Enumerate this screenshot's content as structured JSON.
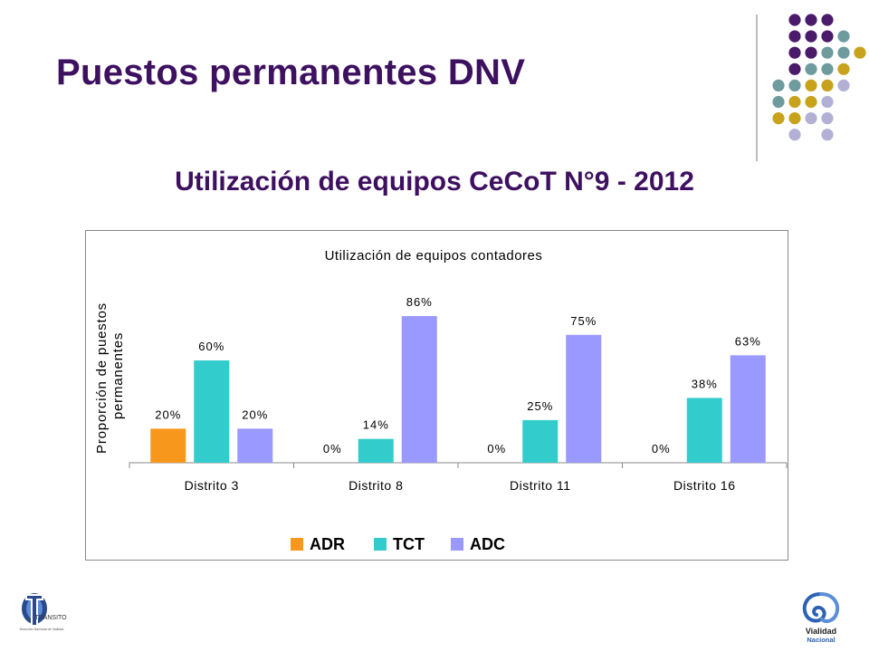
{
  "slide": {
    "title": "Puestos permanentes DNV",
    "subtitle": "Utilización de equipos CeCoT N°9 - 2012"
  },
  "logos": {
    "left_text": "TRÁNSITO",
    "left_caption": "Dirección Nacional de Vialidad",
    "right_text_1": "Vialidad",
    "right_text_2": "Nacional"
  },
  "decoration": {
    "dot_colors": [
      "#4b1a6b",
      "#6d9b9e",
      "#c9a21c",
      "#b3b0d6"
    ]
  },
  "chart_data": {
    "type": "bar",
    "title": "Utilización de equipos contadores",
    "ylabel": "Proporción de puestos permanentes",
    "xlabel": "",
    "categories": [
      "Distrito 3",
      "Distrito 8",
      "Distrito 11",
      "Distrito 16"
    ],
    "series": [
      {
        "name": "ADR",
        "color": "#f7981d",
        "values": [
          20,
          0,
          0,
          0
        ],
        "labels": [
          "20%",
          "0%",
          "0%",
          "0%"
        ]
      },
      {
        "name": "TCT",
        "color": "#33cccc",
        "values": [
          60,
          14,
          25,
          38
        ],
        "labels": [
          "60%",
          "14%",
          "25%",
          "38%"
        ]
      },
      {
        "name": "ADC",
        "color": "#9999ff",
        "values": [
          20,
          86,
          75,
          63
        ],
        "labels": [
          "20%",
          "86%",
          "75%",
          "63%"
        ]
      }
    ],
    "ylim": [
      0,
      100
    ],
    "grid": false,
    "legend_position": "bottom"
  }
}
